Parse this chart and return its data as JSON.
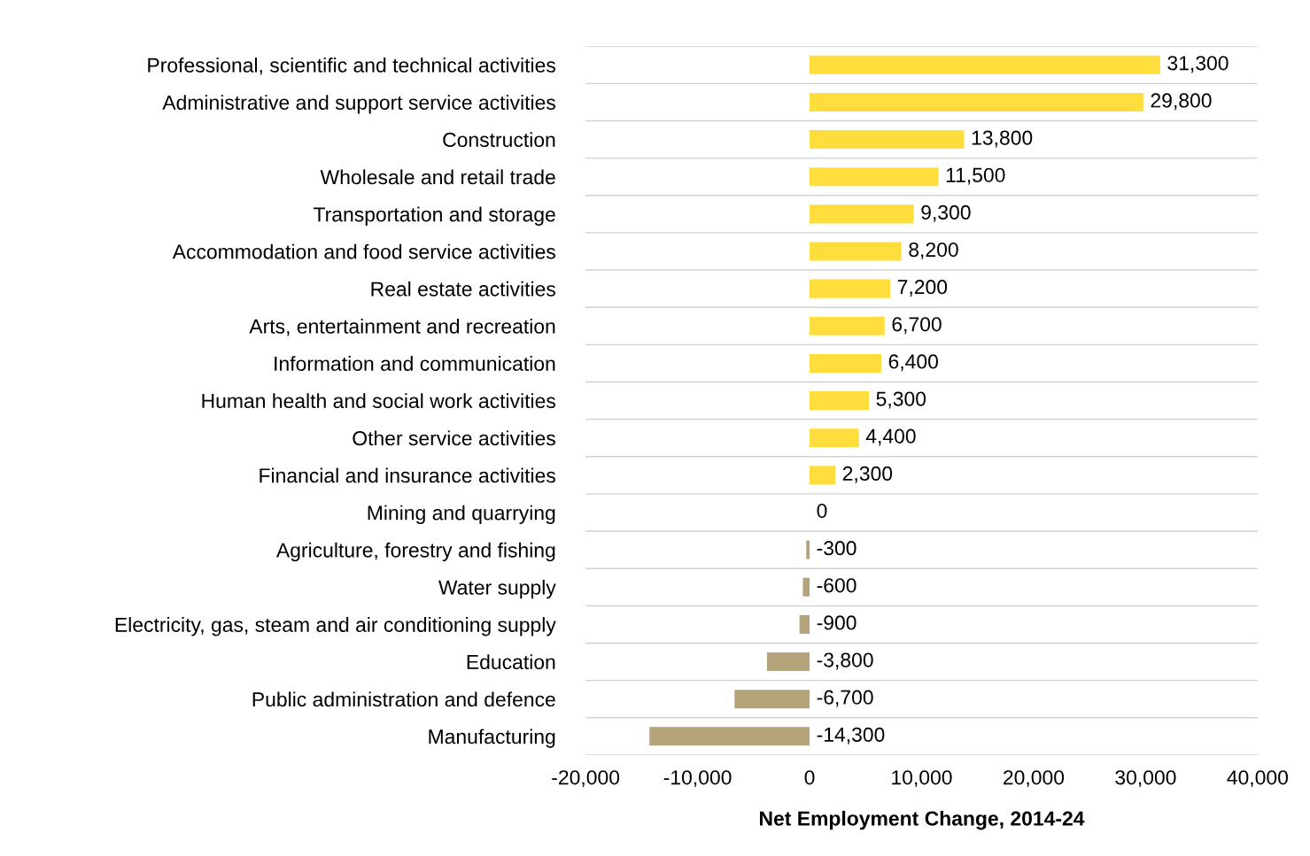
{
  "chart_data": {
    "type": "bar",
    "orientation": "horizontal",
    "xlabel": "Net Employment Change, 2014-24",
    "categories": [
      "Professional, scientific and technical activities",
      "Administrative and support service activities",
      "Construction",
      "Wholesale and retail trade",
      "Transportation and storage",
      "Accommodation and food service activities",
      "Real estate activities",
      "Arts, entertainment and recreation",
      "Information and communication",
      "Human health and social work activities",
      "Other service activities",
      "Financial and insurance activities",
      "Mining and quarrying",
      "Agriculture, forestry and fishing",
      "Water supply",
      "Electricity, gas, steam and air conditioning supply",
      "Education",
      "Public administration and defence",
      "Manufacturing"
    ],
    "values": [
      31300,
      29800,
      13800,
      11500,
      9300,
      8200,
      7200,
      6700,
      6400,
      5300,
      4400,
      2300,
      0,
      -300,
      -600,
      -900,
      -3800,
      -6700,
      -14300
    ],
    "colors": [
      "#ffdd3c",
      "#ffdd3c",
      "#ffdd3c",
      "#ffdd3c",
      "#ffdd3c",
      "#ffdd3c",
      "#ffdd3c",
      "#ffdd3c",
      "#ffdd3c",
      "#ffdd3c",
      "#ffdd3c",
      "#ffdd3c",
      "#ffdd3c",
      "#b5a47a",
      "#b5a47a",
      "#b5a47a",
      "#b5a47a",
      "#b5a47a",
      "#b5a47a"
    ],
    "xlim": [
      -20000,
      40000
    ],
    "xticks": [
      {
        "value": -20000,
        "label": "-20,000"
      },
      {
        "value": -10000,
        "label": "-10,000"
      },
      0,
      {
        "value": 10000,
        "label": "10,000"
      },
      {
        "value": 20000,
        "label": "20,000"
      },
      {
        "value": 30000,
        "label": "30,000"
      },
      {
        "value": 40000,
        "label": "40,000"
      }
    ],
    "value_labels": [
      "31,300",
      "29,800",
      "13,800",
      "11,500",
      "9,300",
      "8,200",
      "7,200",
      "6,700",
      "6,400",
      "5,300",
      "4,400",
      "2,300",
      "0",
      "-300",
      "-600",
      "-900",
      "-3,800",
      "-6,700",
      "-14,300"
    ],
    "grid": "y"
  }
}
